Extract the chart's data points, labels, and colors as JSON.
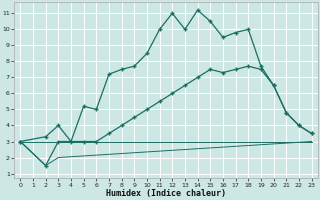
{
  "xlabel": "Humidex (Indice chaleur)",
  "background_color": "#cde8e4",
  "grid_color": "#ffffff",
  "line_color": "#1a6e62",
  "xlim": [
    -0.5,
    23.5
  ],
  "ylim": [
    0.7,
    11.7
  ],
  "xticks": [
    0,
    1,
    2,
    3,
    4,
    5,
    6,
    7,
    8,
    9,
    10,
    11,
    12,
    13,
    14,
    15,
    16,
    17,
    18,
    19,
    20,
    21,
    22,
    23
  ],
  "yticks": [
    1,
    2,
    3,
    4,
    5,
    6,
    7,
    8,
    9,
    10,
    11
  ],
  "line1_x": [
    0,
    2,
    3,
    4,
    5,
    6,
    7,
    8,
    9,
    10,
    11,
    12,
    13,
    14,
    15,
    16,
    17,
    18,
    19,
    20,
    21,
    22,
    23
  ],
  "line1_y": [
    3.0,
    3.3,
    4.0,
    3.0,
    5.2,
    5.0,
    7.2,
    7.5,
    7.7,
    8.5,
    10.0,
    11.0,
    10.0,
    11.2,
    10.5,
    9.5,
    9.8,
    10.0,
    7.7,
    6.5,
    4.8,
    4.0,
    3.5
  ],
  "line2_x": [
    0,
    2,
    3,
    5,
    6,
    7,
    8,
    9,
    10,
    11,
    12,
    13,
    14,
    15,
    16,
    17,
    18,
    19,
    20,
    21,
    22,
    23
  ],
  "line2_y": [
    3.0,
    1.5,
    3.0,
    3.0,
    3.0,
    3.5,
    4.0,
    4.5,
    5.0,
    5.5,
    6.0,
    6.5,
    7.0,
    7.5,
    7.3,
    7.5,
    7.7,
    7.5,
    6.5,
    4.8,
    4.0,
    3.5
  ],
  "line3_x": [
    0,
    2,
    3,
    23
  ],
  "line3_y": [
    3.0,
    1.5,
    2.0,
    3.0
  ],
  "line4_x": [
    0,
    23
  ],
  "line4_y": [
    3.0,
    3.0
  ]
}
